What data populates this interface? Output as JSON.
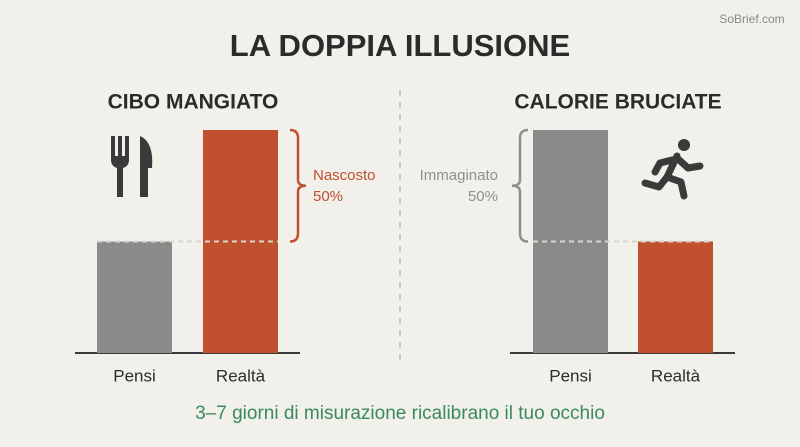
{
  "title": "LA DOPPIA ILLUSIONE",
  "watermark": "SoBrief.com",
  "footer": "3–7 giorni di misurazione ricalibrano il tuo occhio",
  "chart_data": [
    {
      "type": "bar",
      "title": "CIBO MANGIATO",
      "categories": [
        "Pensi",
        "Realtà"
      ],
      "values": [
        50,
        100
      ],
      "colors": [
        "#8a8a8a",
        "#c0502e"
      ],
      "ylim": [
        0,
        100
      ],
      "annotation": {
        "text": "Nascosto",
        "value": "50%",
        "color": "#c0502e"
      }
    },
    {
      "type": "bar",
      "title": "CALORIE BRUCIATE",
      "categories": [
        "Pensi",
        "Realtà"
      ],
      "values": [
        100,
        50
      ],
      "colors": [
        "#8a8a8a",
        "#c0502e"
      ],
      "ylim": [
        0,
        100
      ],
      "annotation": {
        "text": "Immaginato",
        "value": "50%",
        "color": "#8f8f8f"
      }
    }
  ]
}
